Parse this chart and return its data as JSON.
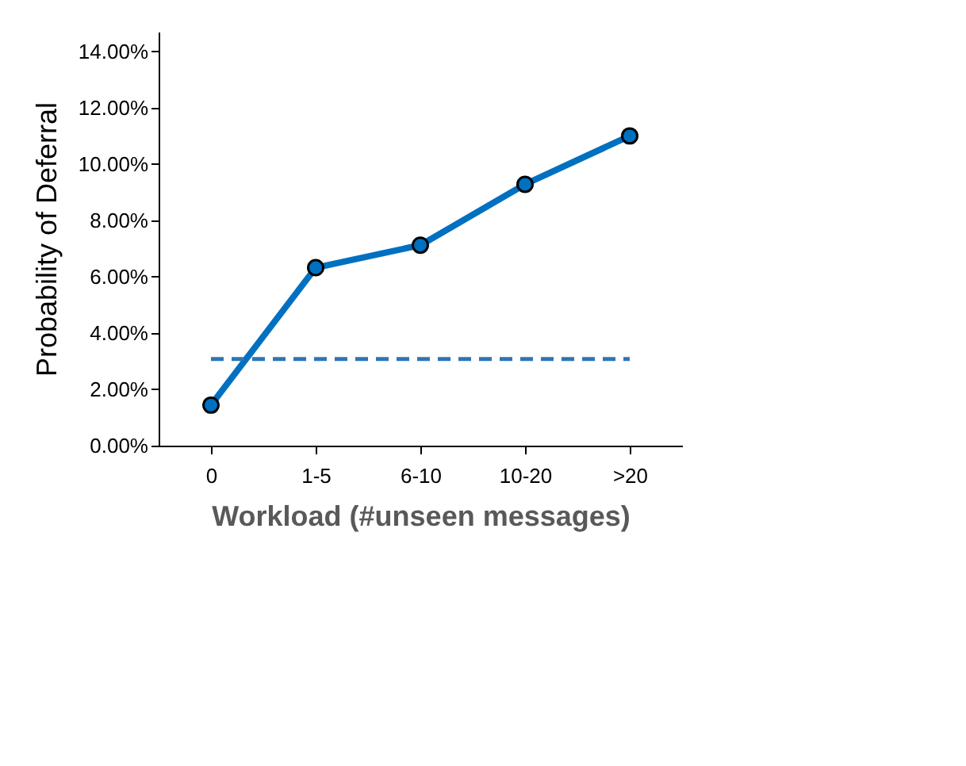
{
  "chart_data": {
    "type": "line",
    "xlabel": "Workload (#unseen messages)",
    "ylabel": "Probability of Deferral",
    "categories": [
      "0",
      "1-5",
      "6-10",
      "10-20",
      ">20"
    ],
    "series": [
      {
        "color": "#0070c0",
        "values": [
          1.44,
          6.32,
          7.12,
          9.28,
          11.0
        ]
      }
    ],
    "ylim": [
      0,
      14.7
    ],
    "yticks": [
      {
        "value": 0,
        "label": "0.00%"
      },
      {
        "value": 2,
        "label": "2.00%"
      },
      {
        "value": 4,
        "label": "4.00%"
      },
      {
        "value": 6,
        "label": "6.00%"
      },
      {
        "value": 8,
        "label": "8.00%"
      },
      {
        "value": 10,
        "label": "10.00%"
      },
      {
        "value": 12,
        "label": "12.00%"
      },
      {
        "value": 14,
        "label": "14.00%"
      }
    ],
    "ref_lines": [
      {
        "axis": "y",
        "value": 3.08,
        "color": "#2e75b6",
        "line_style": "dashed"
      }
    ],
    "marker": "circle",
    "line_style": "solid",
    "grid": false
  }
}
